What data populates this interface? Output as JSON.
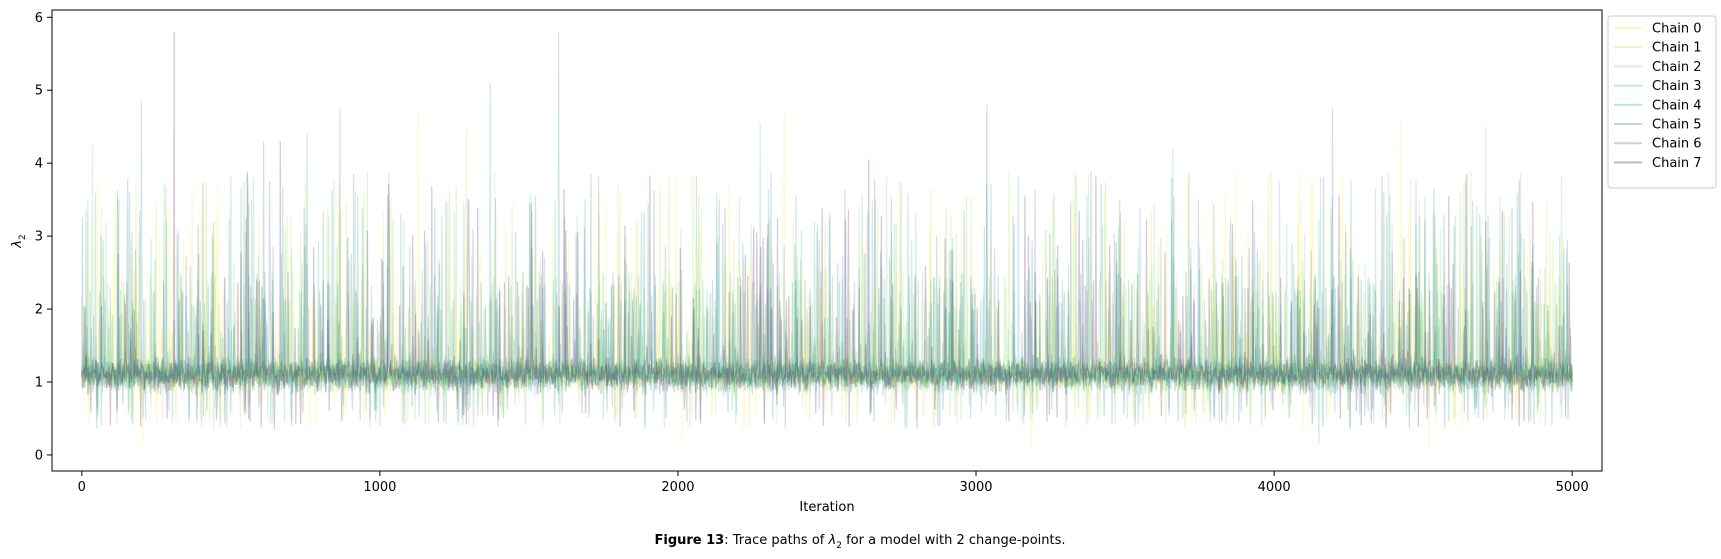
{
  "chart_data": {
    "type": "line",
    "title": "",
    "xlabel": "Iteration",
    "ylabel_symbol": "λ",
    "ylabel_subscript": "2",
    "xlim": [
      -100,
      5100
    ],
    "ylim": [
      -0.22,
      6.1
    ],
    "x_ticks": [
      0,
      1000,
      2000,
      3000,
      4000,
      5000
    ],
    "x_tick_labels": [
      "0",
      "1000",
      "2000",
      "3000",
      "4000",
      "5000"
    ],
    "y_ticks": [
      0,
      1,
      2,
      3,
      4,
      5,
      6
    ],
    "y_tick_labels": [
      "0",
      "1",
      "2",
      "3",
      "4",
      "5",
      "6"
    ],
    "n_iterations": 5000,
    "legend_position": "outside-top-right",
    "series": [
      {
        "name": "Chain 0",
        "color": "#fde725",
        "center": 1.1,
        "spikes": [
          [
            205,
            0.15
          ],
          [
            1130,
            4.75
          ],
          [
            2015,
            0.2
          ],
          [
            2355,
            4.7
          ],
          [
            3185,
            0.05
          ],
          [
            4520,
            0.05
          ],
          [
            4425,
            4.6
          ]
        ]
      },
      {
        "name": "Chain 1",
        "color": "#b5de2b",
        "center": 1.1,
        "spikes": [
          [
            1290,
            4.5
          ],
          [
            3330,
            3.9
          ],
          [
            4660,
            3.9
          ]
        ]
      },
      {
        "name": "Chain 2",
        "color": "#6ece58",
        "center": 1.1,
        "spikes": [
          [
            35,
            4.25
          ],
          [
            2700,
            3.8
          ],
          [
            4710,
            4.5
          ]
        ]
      },
      {
        "name": "Chain 3",
        "color": "#35b779",
        "center": 1.1,
        "spikes": [
          [
            20,
            3.5
          ],
          [
            2275,
            4.55
          ],
          [
            3660,
            4.2
          ]
        ]
      },
      {
        "name": "Chain 4",
        "color": "#1f9e89",
        "center": 1.1,
        "spikes": [
          [
            755,
            4.4
          ],
          [
            1370,
            5.1
          ],
          [
            4150,
            0.15
          ]
        ]
      },
      {
        "name": "Chain 5",
        "color": "#26828e",
        "center": 1.1,
        "spikes": [
          [
            200,
            4.85
          ],
          [
            1600,
            5.8
          ],
          [
            865,
            4.75
          ]
        ]
      },
      {
        "name": "Chain 6",
        "color": "#31688e",
        "center": 1.1,
        "spikes": [
          [
            610,
            4.3
          ],
          [
            4195,
            4.75
          ],
          [
            3035,
            4.8
          ]
        ]
      },
      {
        "name": "Chain 7",
        "color": "#440154",
        "center": 1.1,
        "spikes": [
          [
            310,
            5.8
          ],
          [
            665,
            4.3
          ],
          [
            2640,
            4.05
          ]
        ]
      }
    ]
  },
  "caption": {
    "figure_label": "Figure 13",
    "text_before": ": Trace paths of ",
    "symbol": "λ",
    "subscript": "2",
    "text_after": " for a model with 2 change-points."
  }
}
